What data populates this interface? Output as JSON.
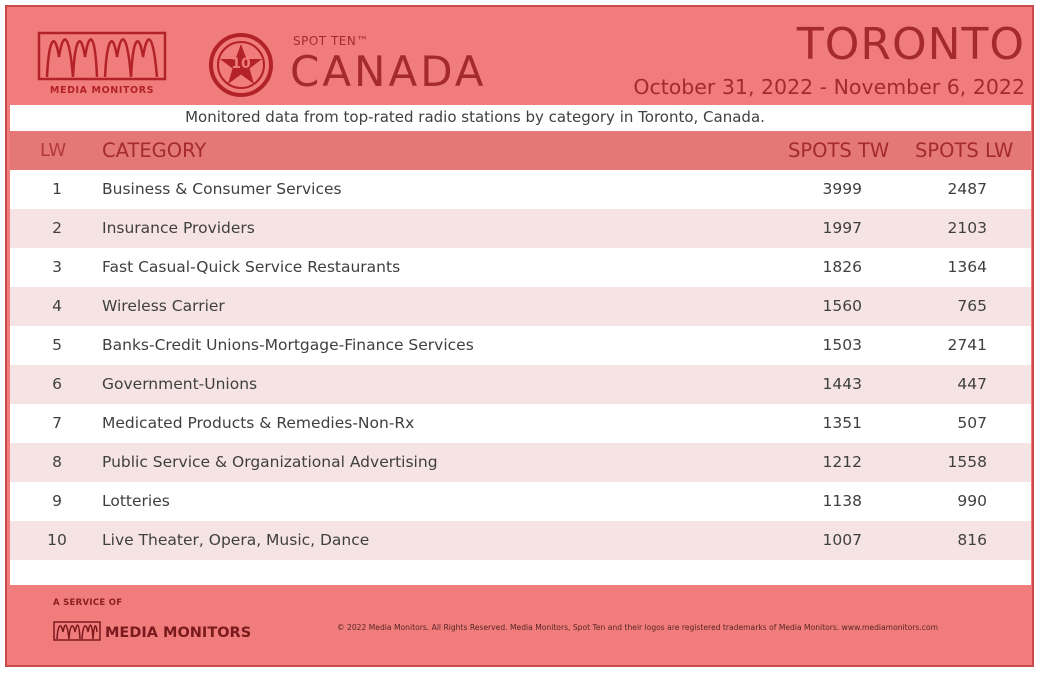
{
  "header": {
    "logo_text": "MEDIA MONITORS",
    "badge_number": "10",
    "brand_small": "SPOT TEN™",
    "brand_big": "CANADA",
    "city": "TORONTO",
    "date_range": "October 31, 2022 - November 6, 2022"
  },
  "subtitle": "Monitored data from top-rated radio stations by category in Toronto, Canada.",
  "table": {
    "columns": [
      "LW",
      "CATEGORY",
      "SPOTS TW",
      "SPOTS LW"
    ],
    "rows": [
      {
        "rank": "1",
        "category": "Business & Consumer Services",
        "spots_tw": "3999",
        "spots_lw": "2487"
      },
      {
        "rank": "2",
        "category": "Insurance Providers",
        "spots_tw": "1997",
        "spots_lw": "2103"
      },
      {
        "rank": "3",
        "category": "Fast Casual-Quick Service Restaurants",
        "spots_tw": "1826",
        "spots_lw": "1364"
      },
      {
        "rank": "4",
        "category": "Wireless Carrier",
        "spots_tw": "1560",
        "spots_lw": "765"
      },
      {
        "rank": "5",
        "category": "Banks-Credit Unions-Mortgage-Finance Services",
        "spots_tw": "1503",
        "spots_lw": "2741"
      },
      {
        "rank": "6",
        "category": "Government-Unions",
        "spots_tw": "1443",
        "spots_lw": "447"
      },
      {
        "rank": "7",
        "category": "Medicated Products & Remedies-Non-Rx",
        "spots_tw": "1351",
        "spots_lw": "507"
      },
      {
        "rank": "8",
        "category": "Public Service & Organizational Advertising",
        "spots_tw": "1212",
        "spots_lw": "1558"
      },
      {
        "rank": "9",
        "category": "Lotteries",
        "spots_tw": "1138",
        "spots_lw": "990"
      },
      {
        "rank": "10",
        "category": "Live Theater, Opera, Music, Dance",
        "spots_tw": "1007",
        "spots_lw": "816"
      }
    ]
  },
  "footer": {
    "service_of": "A SERVICE OF",
    "logo_text": "MEDIA MONITORS",
    "copyright": "© 2022 Media Monitors. All Rights Reserved. Media Monitors, Spot Ten and their logos are registered trademarks of Media Monitors. www.mediamonitors.com"
  },
  "colors": {
    "frame": "#f07d7c",
    "header_row": "#e47877",
    "alt_row": "#f6e4e4",
    "brand_red": "#a52a2e"
  }
}
